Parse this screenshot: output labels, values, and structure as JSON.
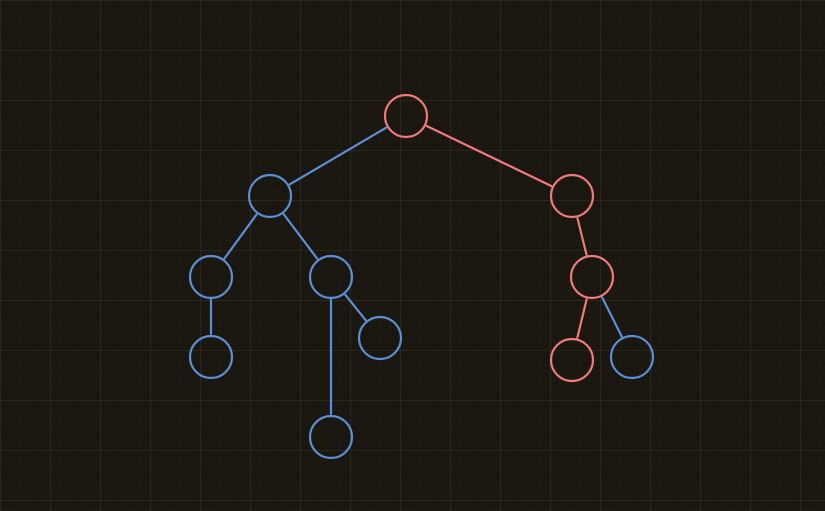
{
  "canvas": {
    "background": "#1a1710",
    "grid_minor_color": "#2a2720",
    "grid_major_color": "#3a362c"
  },
  "colors": {
    "blue": "#5b8fd6",
    "red": "#f07a7a"
  },
  "tree": {
    "nodes": [
      {
        "id": "root",
        "color": "red"
      },
      {
        "id": "left",
        "color": "blue"
      },
      {
        "id": "right",
        "color": "red"
      },
      {
        "id": "left-left",
        "color": "blue"
      },
      {
        "id": "left-right",
        "color": "blue"
      },
      {
        "id": "left-left-child",
        "color": "blue"
      },
      {
        "id": "left-right-child-a",
        "color": "blue"
      },
      {
        "id": "left-right-child-b",
        "color": "blue"
      },
      {
        "id": "right-child",
        "color": "red"
      },
      {
        "id": "right-child-left",
        "color": "red"
      },
      {
        "id": "right-child-right",
        "color": "blue"
      }
    ],
    "edges": [
      {
        "from": "root",
        "to": "left",
        "color": "blue"
      },
      {
        "from": "root",
        "to": "right",
        "color": "red"
      },
      {
        "from": "left",
        "to": "left-left",
        "color": "blue"
      },
      {
        "from": "left",
        "to": "left-right",
        "color": "blue"
      },
      {
        "from": "left-left",
        "to": "left-left-child",
        "color": "blue"
      },
      {
        "from": "left-right",
        "to": "left-right-child-a",
        "color": "blue"
      },
      {
        "from": "left-right",
        "to": "left-right-child-b",
        "color": "blue"
      },
      {
        "from": "right",
        "to": "right-child",
        "color": "red"
      },
      {
        "from": "right-child",
        "to": "right-child-left",
        "color": "red"
      },
      {
        "from": "right-child",
        "to": "right-child-right",
        "color": "blue"
      }
    ]
  }
}
